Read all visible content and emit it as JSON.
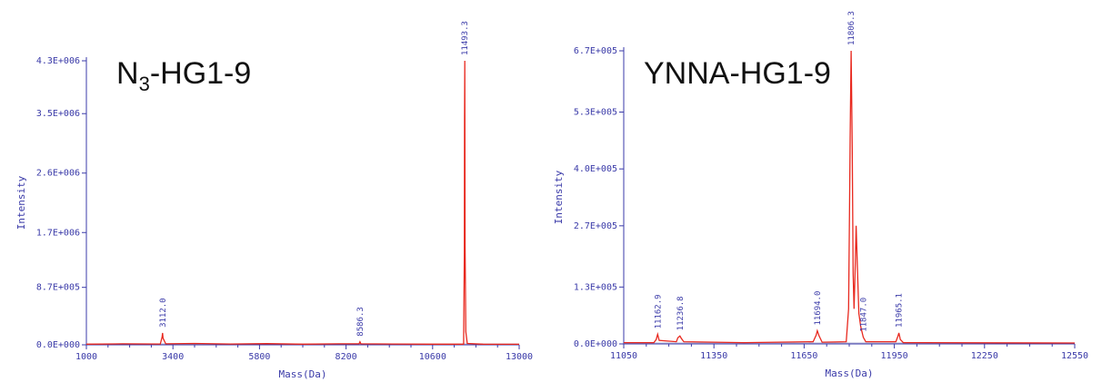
{
  "chart_data": [
    {
      "type": "line",
      "title": "N",
      "title_sub": "3",
      "title_rest": "-HG1-9",
      "xlabel": "Mass(Da)",
      "ylabel": "Intensity",
      "xlim": [
        1000,
        13000
      ],
      "ylim": [
        0,
        4300000
      ],
      "x_ticks": [
        1000,
        3400,
        5800,
        8200,
        10600,
        13000
      ],
      "y_ticks": [
        {
          "value": 0,
          "label": "0.0E+000"
        },
        {
          "value": 870000,
          "label": "8.7E+005"
        },
        {
          "value": 1700000,
          "label": "1.7E+006"
        },
        {
          "value": 2600000,
          "label": "2.6E+006"
        },
        {
          "value": 3500000,
          "label": "3.5E+006"
        },
        {
          "value": 4300000,
          "label": "4.3E+006"
        }
      ],
      "series": [
        {
          "color": "#e8281e",
          "points": [
            [
              1000,
              10000
            ],
            [
              2000,
              15000
            ],
            [
              3050,
              12000
            ],
            [
              3100,
              120000
            ],
            [
              3112,
              180000
            ],
            [
              3125,
              100000
            ],
            [
              3200,
              15000
            ],
            [
              4000,
              20000
            ],
            [
              5000,
              12000
            ],
            [
              6000,
              18000
            ],
            [
              7000,
              10000
            ],
            [
              8000,
              15000
            ],
            [
              8560,
              15000
            ],
            [
              8586,
              45000
            ],
            [
              8610,
              15000
            ],
            [
              9500,
              12000
            ],
            [
              10500,
              10000
            ],
            [
              11460,
              10000
            ],
            [
              11480,
              1400000
            ],
            [
              11485,
              3400000
            ],
            [
              11493,
              4300000
            ],
            [
              11500,
              1500000
            ],
            [
              11520,
              200000
            ],
            [
              11560,
              20000
            ],
            [
              12000,
              10000
            ],
            [
              13000,
              8000
            ]
          ]
        }
      ],
      "peak_labels": [
        {
          "x": 3112,
          "y": 180000,
          "label": "3112.0"
        },
        {
          "x": 8586,
          "y": 45000,
          "label": "8586.3"
        },
        {
          "x": 11493,
          "y": 4300000,
          "label": "11493.3"
        }
      ]
    },
    {
      "type": "line",
      "title": "YNNA-HG1-9",
      "xlabel": "Mass(Da)",
      "ylabel": "Intensity",
      "xlim": [
        11050,
        12550
      ],
      "ylim": [
        0,
        670000
      ],
      "x_ticks": [
        11050,
        11350,
        11650,
        11950,
        12250,
        12550
      ],
      "y_ticks": [
        {
          "value": 0,
          "label": "0.0E+000"
        },
        {
          "value": 130000,
          "label": "1.3E+005"
        },
        {
          "value": 270000,
          "label": "2.7E+005"
        },
        {
          "value": 400000,
          "label": "4.0E+005"
        },
        {
          "value": 530000,
          "label": "5.3E+005"
        },
        {
          "value": 670000,
          "label": "6.7E+005"
        }
      ],
      "series": [
        {
          "color": "#e8281e",
          "points": [
            [
              11050,
              3000
            ],
            [
              11150,
              3000
            ],
            [
              11158,
              10000
            ],
            [
              11162.9,
              22000
            ],
            [
              11168,
              8000
            ],
            [
              11225,
              5000
            ],
            [
              11230,
              14000
            ],
            [
              11236.8,
              18000
            ],
            [
              11242,
              12000
            ],
            [
              11250,
              5000
            ],
            [
              11450,
              3000
            ],
            [
              11680,
              5000
            ],
            [
              11690,
              20000
            ],
            [
              11694,
              30000
            ],
            [
              11700,
              18000
            ],
            [
              11710,
              4000
            ],
            [
              11790,
              5000
            ],
            [
              11798,
              80000
            ],
            [
              11801,
              300000
            ],
            [
              11803,
              470000
            ],
            [
              11806.3,
              670000
            ],
            [
              11810,
              450000
            ],
            [
              11813,
              160000
            ],
            [
              11816,
              80000
            ],
            [
              11820,
              180000
            ],
            [
              11823,
              270000
            ],
            [
              11827,
              180000
            ],
            [
              11832,
              70000
            ],
            [
              11838,
              40000
            ],
            [
              11845,
              20000
            ],
            [
              11847,
              15000
            ],
            [
              11855,
              5000
            ],
            [
              11955,
              5000
            ],
            [
              11962,
              18000
            ],
            [
              11965.1,
              25000
            ],
            [
              11970,
              10000
            ],
            [
              11980,
              3000
            ],
            [
              12550,
              2000
            ]
          ]
        }
      ],
      "peak_labels": [
        {
          "x": 11162.9,
          "y": 22000,
          "label": "11162.9"
        },
        {
          "x": 11236.8,
          "y": 18000,
          "label": "11236.8"
        },
        {
          "x": 11694,
          "y": 30000,
          "label": "11694.0"
        },
        {
          "x": 11806.3,
          "y": 670000,
          "label": "11806.3"
        },
        {
          "x": 11847,
          "y": 15000,
          "label": "11847.0"
        },
        {
          "x": 11965.1,
          "y": 25000,
          "label": "11965.1"
        }
      ]
    }
  ]
}
